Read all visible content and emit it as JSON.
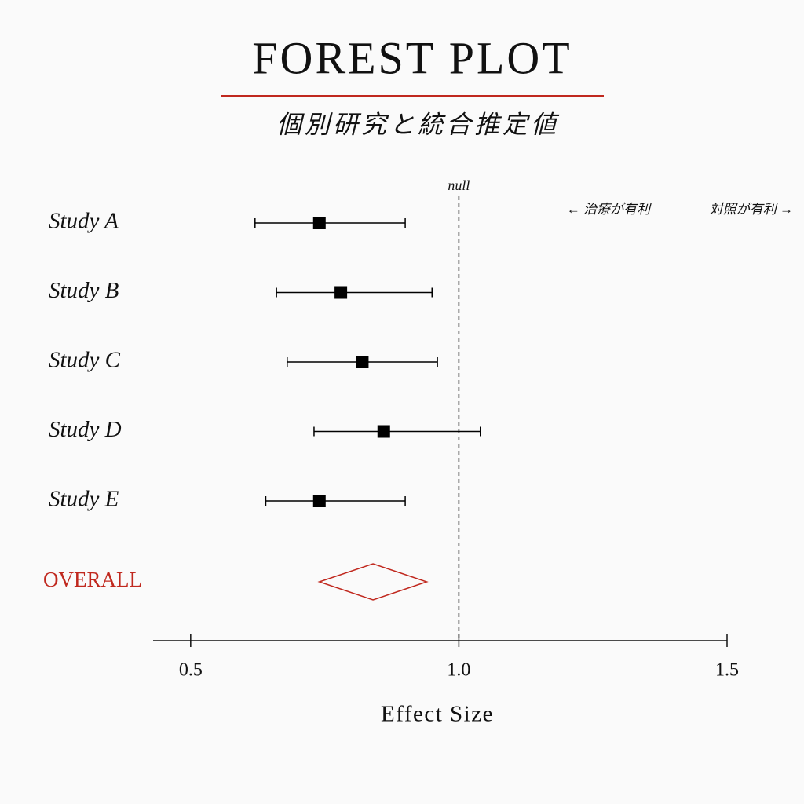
{
  "chart_data": {
    "type": "forest",
    "title": "FOREST PLOT",
    "subtitle": "個別研究と統合推定値",
    "x_label": "Effect Size",
    "categories": [
      "Study A",
      "Study B",
      "Study C",
      "Study D",
      "Study E"
    ],
    "values": [
      0.74,
      0.78,
      0.82,
      0.86,
      0.74
    ],
    "lower": [
      0.62,
      0.66,
      0.68,
      0.73,
      0.64
    ],
    "upper": [
      0.9,
      0.95,
      0.96,
      1.04,
      0.9
    ],
    "color": "#000000",
    "overall": {
      "label": "OVERALL",
      "value": 0.84,
      "lower": 0.74,
      "upper": 0.94,
      "color": "#c0281e"
    },
    "null_line": {
      "value": 1,
      "label": "null"
    },
    "annotations": [
      "← 治療が有利",
      "対照が有利 →"
    ],
    "xlim": [
      0.43,
      1.5
    ],
    "xticks": [
      0.5,
      {
        "value": 1,
        "label": "1.0"
      },
      1.5
    ]
  }
}
